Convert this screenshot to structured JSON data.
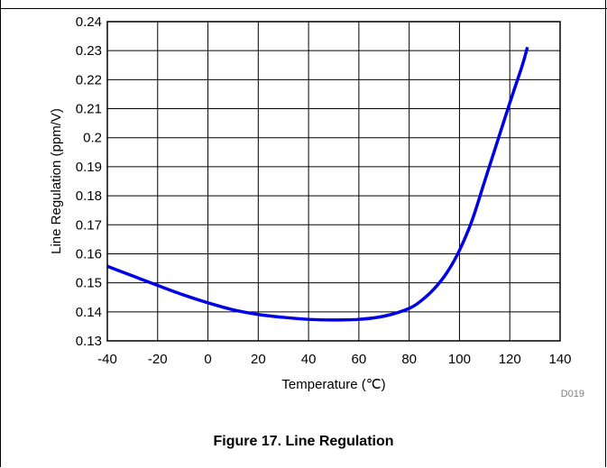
{
  "chart_data": {
    "type": "line",
    "title": "",
    "xlabel": "Temperature (℃)",
    "ylabel": "Line Regulation (ppm/V)",
    "xlim": [
      -40,
      140
    ],
    "ylim": [
      0.13,
      0.24
    ],
    "x_ticks": [
      "-40",
      "-20",
      "0",
      "20",
      "40",
      "60",
      "80",
      "100",
      "120",
      "140"
    ],
    "y_ticks": [
      "0.13",
      "0.14",
      "0.15",
      "0.16",
      "0.17",
      "0.18",
      "0.19",
      "0.2",
      "0.21",
      "0.22",
      "0.23",
      "0.24"
    ],
    "grid": true,
    "line_color": "#0000e6",
    "series": [
      {
        "x": [
          -40,
          -30,
          -20,
          -10,
          0,
          10,
          20,
          30,
          40,
          50,
          60,
          70,
          80,
          85,
          90,
          95,
          100,
          105,
          110,
          115,
          120,
          125,
          127
        ],
        "y": [
          0.1557,
          0.1524,
          0.1491,
          0.1459,
          0.1431,
          0.1407,
          0.1391,
          0.1381,
          0.1374,
          0.1372,
          0.1374,
          0.1385,
          0.1412,
          0.144,
          0.148,
          0.1535,
          0.1612,
          0.1715,
          0.185,
          0.1985,
          0.212,
          0.225,
          0.2312
        ]
      }
    ]
  },
  "doc_code": "D019",
  "caption": "Figure 17. Line Regulation"
}
